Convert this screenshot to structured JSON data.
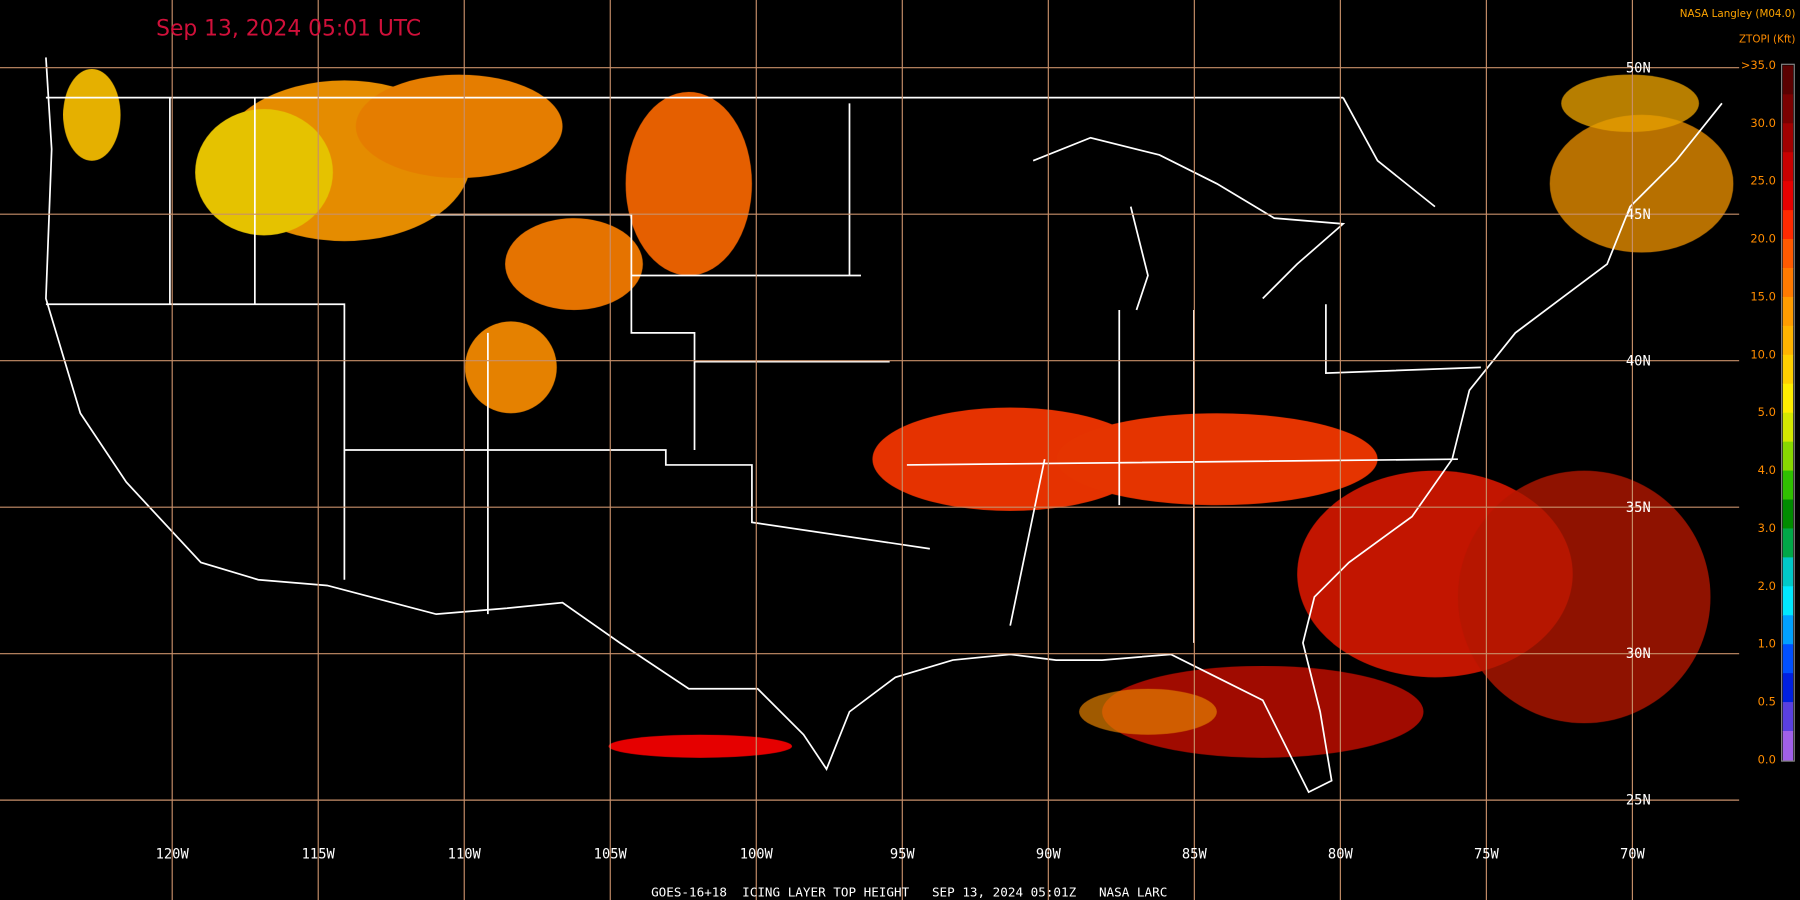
{
  "timestamp": "Sep 13, 2024 05:01 UTC",
  "credit": "NASA Langley (M04.0)",
  "legend": {
    "title": "ZTOPI (Kft)",
    "labels": [
      ">35.0",
      "30.0",
      "25.0",
      "20.0",
      "15.0",
      "10.0",
      "5.0",
      "4.0",
      "3.0",
      "2.0",
      "1.0",
      "0.5",
      "0.0"
    ],
    "colors": [
      "#5a0000",
      "#7a0000",
      "#a00000",
      "#c80000",
      "#e60000",
      "#ff2a00",
      "#ff5a00",
      "#ff7a00",
      "#ff9c00",
      "#ffb400",
      "#ffd000",
      "#ffee00",
      "#d4e800",
      "#88d800",
      "#30c000",
      "#008c00",
      "#00a848",
      "#00c8c8",
      "#00e8ff",
      "#00a0ff",
      "#0050ff",
      "#0020e0",
      "#5a40e0",
      "#a060e8"
    ]
  },
  "longitudes": [
    "120W",
    "115W",
    "110W",
    "105W",
    "100W",
    "95W",
    "90W",
    "85W",
    "80W",
    "75W",
    "70W"
  ],
  "latitudes": [
    "50N",
    "45N",
    "40N",
    "35N",
    "30N",
    "25N"
  ],
  "footer": "GOES-16+18  ICING LAYER TOP HEIGHT   SEP 13, 2024 05:01Z   NASA LARC"
}
